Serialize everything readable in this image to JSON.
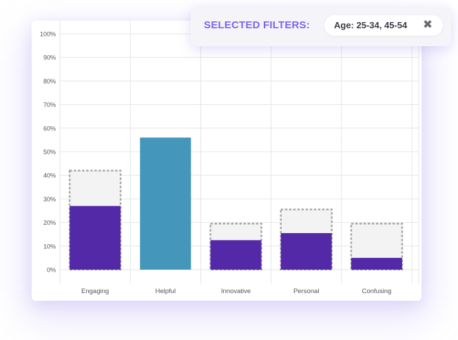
{
  "filters": {
    "title": "SELECTED FILTERS:",
    "chip_label": "Age: 25-34, 45-54",
    "close_icon": "close-icon"
  },
  "colors": {
    "series_primary": "#5429a8",
    "series_highlight": "#4497bb",
    "baseline_fill": "#f3f3f3",
    "baseline_stroke": "#a9a9a9",
    "grid": "#e5e5e5",
    "axis_text": "#555555"
  },
  "chart_data": {
    "type": "bar",
    "title": "",
    "xlabel": "",
    "ylabel": "",
    "ylim": [
      0,
      100
    ],
    "yticks": [
      "0%",
      "10%",
      "20%",
      "30%",
      "40%",
      "50%",
      "60%",
      "70%",
      "80%",
      "90%",
      "100%"
    ],
    "categories": [
      "Engaging",
      "Helpful",
      "Innovative",
      "Personal",
      "Confusing"
    ],
    "series": [
      {
        "values": [
          27,
          56,
          12.5,
          15.5,
          5
        ]
      },
      {
        "values": [
          42,
          null,
          19.5,
          25.5,
          19.5
        ]
      }
    ],
    "highlight_category": "Helpful",
    "grid": true,
    "legend": "none"
  }
}
